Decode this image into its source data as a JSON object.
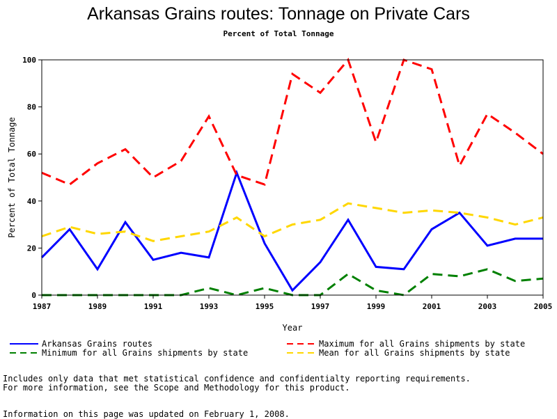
{
  "chart_data": {
    "type": "line",
    "title": "Arkansas Grains routes: Tonnage on Private Cars",
    "subtitle": "Percent of Total Tonnage",
    "xlabel": "Year",
    "ylabel": "Percent of Total Tonnage",
    "xlim": [
      1987,
      2005
    ],
    "ylim": [
      0,
      100
    ],
    "x_ticks": [
      1987,
      1989,
      1991,
      1993,
      1995,
      1997,
      1999,
      2001,
      2003,
      2005
    ],
    "y_ticks": [
      0,
      20,
      40,
      60,
      80,
      100
    ],
    "grid": false,
    "legend_position": "bottom",
    "x": [
      1987,
      1988,
      1989,
      1990,
      1991,
      1992,
      1993,
      1994,
      1995,
      1996,
      1997,
      1998,
      1999,
      2000,
      2001,
      2002,
      2003,
      2004,
      2005
    ],
    "series": [
      {
        "name": "Arkansas Grains routes",
        "color": "#0000ff",
        "style": "solid",
        "values": [
          16,
          28,
          11,
          31,
          15,
          18,
          16,
          52,
          22,
          2,
          14,
          32,
          12,
          11,
          28,
          35,
          21,
          24,
          24
        ]
      },
      {
        "name": "Maximum for all Grains shipments by state",
        "color": "#ff0000",
        "style": "dashed",
        "values": [
          52,
          47,
          56,
          62,
          50,
          57,
          76,
          51,
          47,
          94,
          86,
          100,
          65,
          100,
          96,
          55,
          77,
          69,
          60
        ]
      },
      {
        "name": "Minimum for all Grains shipments by state",
        "color": "#008000",
        "style": "dashed",
        "values": [
          0,
          0,
          0,
          0,
          0,
          0,
          3,
          0,
          3,
          0,
          0,
          9,
          2,
          0,
          9,
          8,
          11,
          6,
          7
        ]
      },
      {
        "name": "Mean for all Grains shipments by state",
        "color": "#ffd700",
        "style": "dashed",
        "values": [
          25,
          29,
          26,
          27,
          23,
          25,
          27,
          33,
          25,
          30,
          32,
          39,
          37,
          35,
          36,
          35,
          33,
          30,
          33
        ]
      }
    ]
  },
  "notes": {
    "line1": "Includes only data that met statistical confidence and confidentialty reporting requirements.",
    "line2": "For more information, see the Scope and Methodology for this product.",
    "updated": "Information on this page was updated on February 1, 2008."
  }
}
